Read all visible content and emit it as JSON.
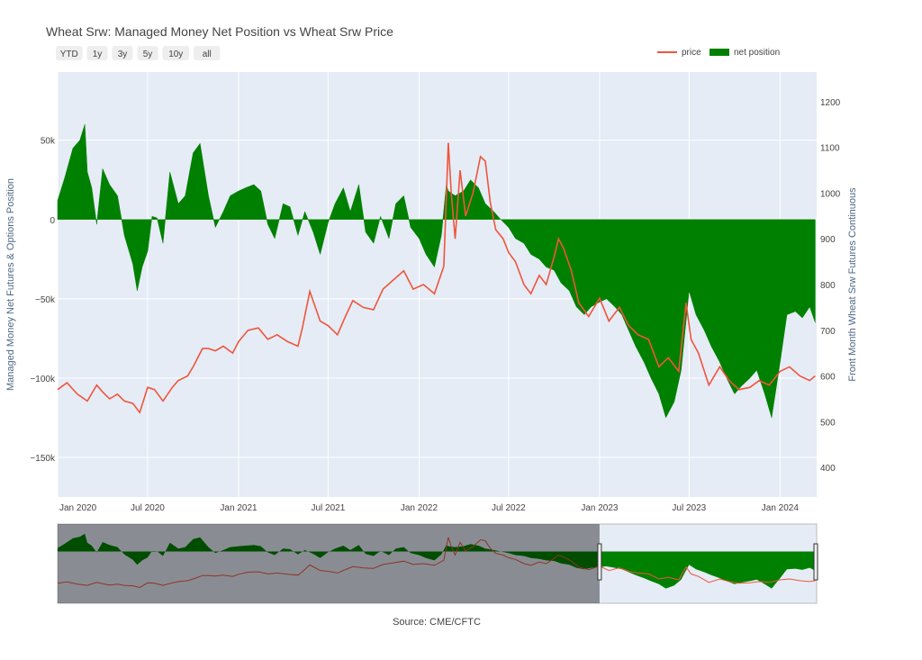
{
  "chart_data": {
    "type": "line+area",
    "title": "Wheat Srw: Managed Money Net Position vs Wheat Srw Price",
    "source": "Source: CME/CFTC",
    "range_buttons": [
      "YTD",
      "1y",
      "3y",
      "5y",
      "10y",
      "all"
    ],
    "legend": [
      {
        "name": "price",
        "color": "#ef553b",
        "kind": "line"
      },
      {
        "name": "net position",
        "color": "#008000",
        "kind": "area"
      }
    ],
    "yaxis_left": {
      "title": "Managed Money Net Futures & Options Position",
      "range": [
        -175000,
        93000
      ],
      "ticks": [
        50000,
        0,
        -50000,
        -100000,
        -150000
      ],
      "tick_labels": [
        "50k",
        "0",
        "−50k",
        "−100k",
        "−150k"
      ]
    },
    "yaxis_right": {
      "title": "Front Month Wheat Srw Futures Continuous",
      "range": [
        335,
        1265
      ],
      "ticks": [
        1200,
        1100,
        1000,
        900,
        800,
        700,
        600,
        500,
        400
      ],
      "tick_labels": [
        "1200",
        "1100",
        "1000",
        "900",
        "800",
        "700",
        "600",
        "500",
        "400"
      ]
    },
    "xaxis": {
      "range": [
        "2020-01-01",
        "2024-03-15"
      ],
      "ticks": [
        "2020-01-01",
        "2020-07-01",
        "2021-01-01",
        "2021-07-01",
        "2022-01-01",
        "2022-07-01",
        "2023-01-01",
        "2023-07-01",
        "2024-01-01"
      ],
      "tick_labels": [
        "Jan 2020",
        "Jul 2020",
        "Jan 2021",
        "Jul 2021",
        "Jan 2022",
        "Jul 2022",
        "Jan 2023",
        "Jul 2023",
        "Jan 2024"
      ]
    },
    "net_position": {
      "name": "net position",
      "x": [
        "2020-01-01",
        "2020-01-15",
        "2020-02-01",
        "2020-02-15",
        "2020-02-25",
        "2020-03-01",
        "2020-03-10",
        "2020-03-20",
        "2020-04-01",
        "2020-04-15",
        "2020-05-01",
        "2020-05-15",
        "2020-06-01",
        "2020-06-10",
        "2020-06-20",
        "2020-07-01",
        "2020-07-10",
        "2020-07-20",
        "2020-08-01",
        "2020-08-15",
        "2020-09-01",
        "2020-09-15",
        "2020-10-01",
        "2020-10-15",
        "2020-11-01",
        "2020-11-15",
        "2020-12-01",
        "2020-12-15",
        "2021-01-01",
        "2021-01-15",
        "2021-02-01",
        "2021-02-15",
        "2021-03-01",
        "2021-03-15",
        "2021-04-01",
        "2021-04-15",
        "2021-05-01",
        "2021-05-15",
        "2021-06-01",
        "2021-06-15",
        "2021-07-01",
        "2021-07-15",
        "2021-08-01",
        "2021-08-15",
        "2021-09-01",
        "2021-09-15",
        "2021-10-01",
        "2021-10-15",
        "2021-11-01",
        "2021-11-15",
        "2021-12-01",
        "2021-12-15",
        "2022-01-01",
        "2022-01-15",
        "2022-02-01",
        "2022-02-15",
        "2022-02-25",
        "2022-03-01",
        "2022-03-15",
        "2022-04-01",
        "2022-04-15",
        "2022-05-01",
        "2022-05-15",
        "2022-06-01",
        "2022-06-15",
        "2022-07-01",
        "2022-07-15",
        "2022-08-01",
        "2022-08-15",
        "2022-09-01",
        "2022-09-15",
        "2022-10-01",
        "2022-10-15",
        "2022-11-01",
        "2022-11-15",
        "2022-12-01",
        "2022-12-15",
        "2023-01-01",
        "2023-01-15",
        "2023-02-01",
        "2023-02-15",
        "2023-03-01",
        "2023-03-15",
        "2023-04-01",
        "2023-04-15",
        "2023-05-01",
        "2023-05-15",
        "2023-06-01",
        "2023-06-15",
        "2023-07-01",
        "2023-07-15",
        "2023-08-01",
        "2023-08-15",
        "2023-09-01",
        "2023-09-15",
        "2023-10-01",
        "2023-10-15",
        "2023-11-01",
        "2023-11-15",
        "2023-12-01",
        "2023-12-15",
        "2024-01-01",
        "2024-01-15",
        "2024-02-01",
        "2024-02-15",
        "2024-03-01",
        "2024-03-12"
      ],
      "values": [
        12000,
        26000,
        45000,
        50000,
        60000,
        30000,
        20000,
        -3000,
        32000,
        22000,
        15000,
        -10000,
        -28000,
        -45000,
        -30000,
        -20000,
        2000,
        1000,
        -15000,
        30000,
        10000,
        15000,
        42000,
        48000,
        15000,
        -5000,
        5000,
        15000,
        18000,
        20000,
        22000,
        18000,
        -3000,
        -12000,
        10000,
        8000,
        -10000,
        5000,
        -8000,
        -22000,
        -2000,
        10000,
        20000,
        5000,
        22000,
        -8000,
        -15000,
        2000,
        -12000,
        10000,
        15000,
        -5000,
        -12000,
        -22000,
        -30000,
        -10000,
        22000,
        18000,
        15000,
        18000,
        25000,
        20000,
        10000,
        5000,
        0,
        -5000,
        -12000,
        -15000,
        -22000,
        -25000,
        -30000,
        -32000,
        -40000,
        -45000,
        -55000,
        -60000,
        -55000,
        -52000,
        -50000,
        -55000,
        -60000,
        -70000,
        -80000,
        -90000,
        -100000,
        -110000,
        -125000,
        -115000,
        -95000,
        -45000,
        -60000,
        -70000,
        -80000,
        -90000,
        -100000,
        -110000,
        -105000,
        -100000,
        -95000,
        -110000,
        -125000,
        -90000,
        -60000,
        -58000,
        -62000,
        -55000,
        -65000
      ],
      "color": "#008000"
    },
    "price": {
      "name": "price",
      "x": [
        "2020-01-01",
        "2020-01-20",
        "2020-02-10",
        "2020-03-01",
        "2020-03-20",
        "2020-04-01",
        "2020-04-15",
        "2020-05-01",
        "2020-05-15",
        "2020-06-01",
        "2020-06-15",
        "2020-07-01",
        "2020-07-15",
        "2020-08-01",
        "2020-08-20",
        "2020-09-01",
        "2020-09-20",
        "2020-10-01",
        "2020-10-20",
        "2020-11-01",
        "2020-11-15",
        "2020-12-01",
        "2020-12-20",
        "2021-01-01",
        "2021-01-20",
        "2021-02-10",
        "2021-03-01",
        "2021-03-20",
        "2021-04-10",
        "2021-05-01",
        "2021-05-10",
        "2021-05-25",
        "2021-06-15",
        "2021-07-01",
        "2021-07-20",
        "2021-08-05",
        "2021-08-20",
        "2021-09-10",
        "2021-10-01",
        "2021-10-20",
        "2021-11-10",
        "2021-12-01",
        "2021-12-20",
        "2022-01-10",
        "2022-02-01",
        "2022-02-20",
        "2022-03-01",
        "2022-03-07",
        "2022-03-15",
        "2022-03-25",
        "2022-04-05",
        "2022-04-20",
        "2022-05-05",
        "2022-05-15",
        "2022-05-25",
        "2022-06-05",
        "2022-06-20",
        "2022-07-01",
        "2022-07-15",
        "2022-08-01",
        "2022-08-15",
        "2022-09-01",
        "2022-09-15",
        "2022-10-01",
        "2022-10-10",
        "2022-10-20",
        "2022-11-05",
        "2022-11-20",
        "2022-12-10",
        "2023-01-01",
        "2023-01-20",
        "2023-02-10",
        "2023-03-01",
        "2023-03-20",
        "2023-04-10",
        "2023-05-01",
        "2023-05-20",
        "2023-06-10",
        "2023-06-25",
        "2023-07-05",
        "2023-07-20",
        "2023-08-10",
        "2023-09-01",
        "2023-09-20",
        "2023-10-10",
        "2023-11-01",
        "2023-11-20",
        "2023-12-10",
        "2024-01-01",
        "2024-01-20",
        "2024-02-10",
        "2024-03-01",
        "2024-03-12"
      ],
      "values": [
        570,
        585,
        560,
        545,
        580,
        565,
        550,
        560,
        545,
        540,
        520,
        575,
        570,
        545,
        575,
        590,
        600,
        620,
        660,
        660,
        655,
        665,
        650,
        675,
        700,
        705,
        680,
        690,
        675,
        665,
        705,
        785,
        720,
        710,
        690,
        730,
        765,
        750,
        745,
        790,
        810,
        830,
        790,
        800,
        780,
        840,
        1110,
        1000,
        900,
        1050,
        950,
        1000,
        1080,
        1070,
        980,
        920,
        900,
        870,
        850,
        800,
        780,
        820,
        800,
        860,
        900,
        880,
        830,
        760,
        730,
        770,
        720,
        750,
        710,
        690,
        680,
        620,
        640,
        610,
        760,
        680,
        650,
        580,
        620,
        590,
        570,
        575,
        590,
        580,
        610,
        620,
        600,
        590,
        600
      ]
    },
    "range_selector_shaded_until": "2023-01-01"
  }
}
